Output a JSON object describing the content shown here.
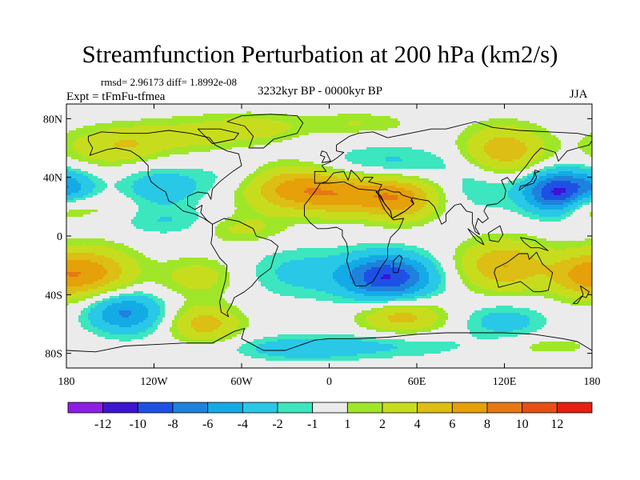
{
  "title": "Streamfunction Perturbation at 200 hPa (km2/s)",
  "stats_text": "rmsd= 2.96173 diff= 1.8992e-08",
  "period": "3232kyr BP - 0000kyr BP",
  "experiment": "Expt = tFmFu-tfmea",
  "season": "JJA",
  "map": {
    "projection": "cylindrical equidistant",
    "lon_range": [
      -180,
      180
    ],
    "lat_range": [
      -90,
      90
    ],
    "background_color": "#ebebeb",
    "coastline_color": "#000000",
    "lat_ticks": [
      {
        "value": 80,
        "label": "80N"
      },
      {
        "value": 40,
        "label": "40N"
      },
      {
        "value": 0,
        "label": "0"
      },
      {
        "value": -40,
        "label": "40S"
      },
      {
        "value": -80,
        "label": "80S"
      }
    ],
    "lon_ticks": [
      {
        "value": -180,
        "label": "180"
      },
      {
        "value": -120,
        "label": "120W"
      },
      {
        "value": -60,
        "label": "60W"
      },
      {
        "value": 0,
        "label": "0"
      },
      {
        "value": 60,
        "label": "60E"
      },
      {
        "value": 120,
        "label": "120E"
      },
      {
        "value": 180,
        "label": "180"
      }
    ]
  },
  "colorbar": {
    "colors": [
      "#8c1ee6",
      "#3c14d2",
      "#1e50e6",
      "#1e82dc",
      "#14aae6",
      "#28c8e6",
      "#3ce6be",
      "#ebebeb",
      "#a0e628",
      "#c8dc1e",
      "#dcbe14",
      "#e6a00a",
      "#e67814",
      "#e65014",
      "#e61e14"
    ],
    "labels": [
      "-12",
      "-10",
      "-8",
      "-6",
      "-4",
      "-2",
      "-1",
      "1",
      "2",
      "4",
      "6",
      "8",
      "10",
      "12"
    ]
  },
  "chart_data": {
    "type": "heatmap",
    "title": "Streamfunction Perturbation at 200 hPa (km2/s)",
    "levels": [
      -12,
      -10,
      -8,
      -6,
      -4,
      -2,
      -1,
      1,
      2,
      4,
      6,
      8,
      10,
      12
    ],
    "xlim": [
      -180,
      180
    ],
    "ylim": [
      -90,
      90
    ],
    "features": [
      {
        "lon": -160,
        "lat": 60,
        "value": 2.5,
        "sx": 20,
        "sy": 10
      },
      {
        "lon": -135,
        "lat": 62,
        "value": 2,
        "sx": 15,
        "sy": 8
      },
      {
        "lon": -100,
        "lat": 68,
        "value": 2.5,
        "sx": 30,
        "sy": 9
      },
      {
        "lon": -50,
        "lat": 74,
        "value": 2.5,
        "sx": 25,
        "sy": 7
      },
      {
        "lon": 20,
        "lat": 77,
        "value": 2,
        "sx": 25,
        "sy": 5
      },
      {
        "lon": -175,
        "lat": 32,
        "value": -3.5,
        "sx": 12,
        "sy": 9
      },
      {
        "lon": -115,
        "lat": 33,
        "value": -3.5,
        "sx": 20,
        "sy": 9
      },
      {
        "lon": -60,
        "lat": 40,
        "value": -2,
        "sx": 22,
        "sy": 10
      },
      {
        "lon": -160,
        "lat": 20,
        "value": 1.6,
        "sx": 18,
        "sy": 7
      },
      {
        "lon": -30,
        "lat": 35,
        "value": 5,
        "sx": 25,
        "sy": 11
      },
      {
        "lon": 20,
        "lat": 28,
        "value": 7,
        "sx": 38,
        "sy": 10
      },
      {
        "lon": 50,
        "lat": 22,
        "value": 3,
        "sx": 15,
        "sy": 10
      },
      {
        "lon": -60,
        "lat": 5,
        "value": 2.5,
        "sx": 20,
        "sy": 7
      },
      {
        "lon": 40,
        "lat": 50,
        "value": -2.5,
        "sx": 35,
        "sy": 8
      },
      {
        "lon": 100,
        "lat": 32,
        "value": -2.5,
        "sx": 20,
        "sy": 11
      },
      {
        "lon": 120,
        "lat": 58,
        "value": 5.5,
        "sx": 20,
        "sy": 12
      },
      {
        "lon": 158,
        "lat": 30,
        "value": -11,
        "sx": 17,
        "sy": 10
      },
      {
        "lon": 175,
        "lat": 22,
        "value": 4,
        "sx": 12,
        "sy": 8
      },
      {
        "lon": -110,
        "lat": 10,
        "value": -2,
        "sx": 25,
        "sy": 7
      },
      {
        "lon": -165,
        "lat": -25,
        "value": 7,
        "sx": 22,
        "sy": 12
      },
      {
        "lon": -90,
        "lat": -28,
        "value": 3,
        "sx": 18,
        "sy": 9
      },
      {
        "lon": -140,
        "lat": -52,
        "value": -6.5,
        "sx": 18,
        "sy": 10
      },
      {
        "lon": -85,
        "lat": -60,
        "value": 5,
        "sx": 17,
        "sy": 9
      },
      {
        "lon": -20,
        "lat": -25,
        "value": -2.5,
        "sx": 25,
        "sy": 12
      },
      {
        "lon": 40,
        "lat": -28,
        "value": -10,
        "sx": 22,
        "sy": 11
      },
      {
        "lon": 15,
        "lat": -75,
        "value": -2.5,
        "sx": 55,
        "sy": 6
      },
      {
        "lon": 50,
        "lat": -55,
        "value": 5,
        "sx": 20,
        "sy": 8
      },
      {
        "lon": 120,
        "lat": -20,
        "value": 6,
        "sx": 22,
        "sy": 12
      },
      {
        "lon": 170,
        "lat": -28,
        "value": 3,
        "sx": 15,
        "sy": 10
      },
      {
        "lon": 120,
        "lat": -58,
        "value": -3,
        "sx": 20,
        "sy": 8
      },
      {
        "lon": 150,
        "lat": -75,
        "value": 1.6,
        "sx": 25,
        "sy": 5
      },
      {
        "lon": -20,
        "lat": -78,
        "value": -2,
        "sx": 25,
        "sy": 5
      }
    ]
  }
}
